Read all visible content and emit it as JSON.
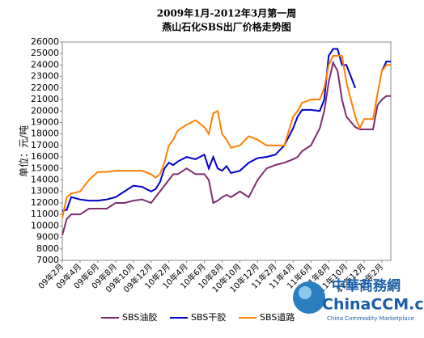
{
  "chart_data": {
    "type": "line",
    "title": "2009年1月-2012年3月第一周",
    "subtitle": "燕山石化SBS出厂价格走势图",
    "y_label": "单位：元/吨",
    "x": [
      1,
      1.5,
      2,
      3,
      4,
      5,
      6,
      7,
      8,
      9,
      10,
      11,
      11.5,
      12,
      12.5,
      13,
      13.5,
      14,
      15,
      16,
      17,
      17.5,
      18,
      18.5,
      19,
      19.5,
      20,
      21,
      22,
      23,
      24,
      25,
      26,
      27,
      27.5,
      28,
      29,
      30,
      30.5,
      31,
      31.5,
      32,
      32.5,
      33,
      34,
      34.5,
      35,
      36,
      36.5,
      37,
      37.5,
      38
    ],
    "series": [
      {
        "name": "SBS油胶",
        "color": "#7b2d6e",
        "values": [
          9200,
          10600,
          11000,
          11000,
          11500,
          11500,
          11500,
          12000,
          12000,
          12200,
          12300,
          12000,
          12500,
          13000,
          13500,
          14000,
          14500,
          14500,
          15000,
          14500,
          14500,
          14000,
          12000,
          12200,
          12500,
          12700,
          12500,
          13000,
          12500,
          14000,
          15000,
          15300,
          15500,
          15800,
          16000,
          16500,
          17000,
          18500,
          20000,
          22500,
          24200,
          23500,
          21000,
          19500,
          18600,
          18400,
          18400,
          18400,
          20500,
          21000,
          21300,
          21300
        ]
      },
      {
        "name": "SBS干胶",
        "color": "#0000cc",
        "values": [
          11300,
          11400,
          12500,
          12300,
          12200,
          12200,
          12300,
          12500,
          13000,
          13500,
          13400,
          13000,
          13200,
          13800,
          15000,
          15500,
          15300,
          15600,
          16000,
          15800,
          16200,
          15000,
          16000,
          15000,
          14800,
          15200,
          14600,
          14800,
          15500,
          15900,
          16000,
          16200,
          17000,
          18500,
          19500,
          20100,
          20100,
          20000,
          21000,
          24800,
          25400,
          25400,
          24000,
          24000,
          22000,
          null,
          null,
          null,
          null,
          23500,
          24300,
          24300
        ]
      },
      {
        "name": "SBS道路",
        "color": "#ff8000",
        "values": [
          10700,
          12500,
          12800,
          13000,
          14000,
          14700,
          14700,
          14800,
          14800,
          14800,
          14800,
          14500,
          14200,
          14500,
          15500,
          17000,
          17500,
          18300,
          18800,
          19200,
          18600,
          18000,
          19800,
          20000,
          18000,
          17500,
          16800,
          17000,
          17800,
          17500,
          17000,
          17000,
          17000,
          19500,
          20000,
          20700,
          21000,
          21000,
          22000,
          24000,
          24800,
          24800,
          24800,
          22500,
          19500,
          18500,
          19300,
          19300,
          21500,
          23500,
          24000,
          24000
        ]
      }
    ],
    "xlim": [
      1,
      38
    ],
    "xticks": [
      {
        "value": 1,
        "label": "09年2月"
      },
      {
        "value": 3,
        "label": "09年4月"
      },
      {
        "value": 5,
        "label": "09年6月"
      },
      {
        "value": 7,
        "label": "09年8月"
      },
      {
        "value": 9,
        "label": "09年10月"
      },
      {
        "value": 11,
        "label": "09年12月"
      },
      {
        "value": 13,
        "label": "10年2月"
      },
      {
        "value": 15,
        "label": "10年4月"
      },
      {
        "value": 17,
        "label": "10年6月"
      },
      {
        "value": 19,
        "label": "10年8月"
      },
      {
        "value": 21,
        "label": "10年10月"
      },
      {
        "value": 23,
        "label": "10年12月"
      },
      {
        "value": 25,
        "label": "11年2月"
      },
      {
        "value": 27,
        "label": "11年4月"
      },
      {
        "value": 29,
        "label": "11年6月"
      },
      {
        "value": 31,
        "label": "11年8月"
      },
      {
        "value": 33,
        "label": "11年10月"
      },
      {
        "value": 35,
        "label": "11年12月"
      },
      {
        "value": 37,
        "label": "12年2月"
      }
    ],
    "ylim": [
      7000,
      26000
    ],
    "yticks": [
      7000,
      8000,
      9000,
      10000,
      11000,
      12000,
      13000,
      14000,
      15000,
      16000,
      17000,
      18000,
      19000,
      20000,
      21000,
      22000,
      23000,
      24000,
      25000,
      26000
    ],
    "grid": false
  },
  "logo": {
    "name": "中華商務網",
    "site": "ChinaCCM.com",
    "tagline": "China Commodity Marketplace"
  }
}
